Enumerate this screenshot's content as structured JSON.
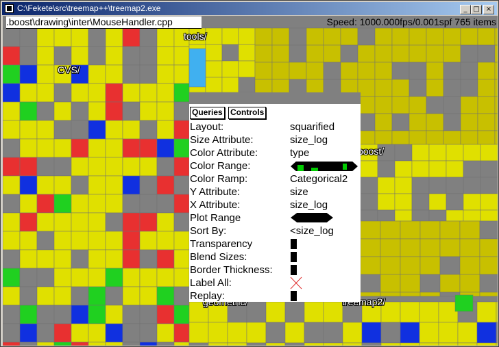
{
  "window": {
    "title": "C:\\Fekete\\src\\treemap++\\treemap2.exe",
    "btn_min": "_",
    "btn_max": "□",
    "btn_close": "×"
  },
  "path": ".boost\\drawing\\inter\\MouseHandler.cpp",
  "status": "Speed: 1000.000fps/0.001spf 765 items",
  "labels": {
    "cvs": "CVS/",
    "tools": "tools/",
    "boost": "boost/",
    "geometric": "geometric/",
    "treemap2": "treemap2/"
  },
  "colors": {
    "yellow": "#e0e000",
    "gray": "#808080",
    "red": "#e83030",
    "green": "#20d020",
    "blue": "#1030e0",
    "cyan": "#40b0f0",
    "olive": "#c8c000"
  },
  "panel": {
    "tabs": [
      "Queries",
      "Controls"
    ],
    "rows": [
      {
        "label": "Layout:",
        "value": "squarified"
      },
      {
        "label": "Size Attribute:",
        "value": "size_log"
      },
      {
        "label": "Color Attribute:",
        "value": "type"
      },
      {
        "label": "Color Range:",
        "value": ""
      },
      {
        "label": "Color Ramp:",
        "value": "Categorical2"
      },
      {
        "label": "Y Attribute:",
        "value": "size"
      },
      {
        "label": "X Attribute:",
        "value": "size_log"
      },
      {
        "label": "Plot Range",
        "value": ""
      },
      {
        "label": "Sort By:",
        "value": "<size_log"
      },
      {
        "label": "Transparency",
        "value": ""
      },
      {
        "label": "Blend Sizes:",
        "value": ""
      },
      {
        "label": "Border Thickness:",
        "value": ""
      },
      {
        "label": "Label All:",
        "value": ""
      },
      {
        "label": "Replay:",
        "value": ""
      }
    ]
  }
}
